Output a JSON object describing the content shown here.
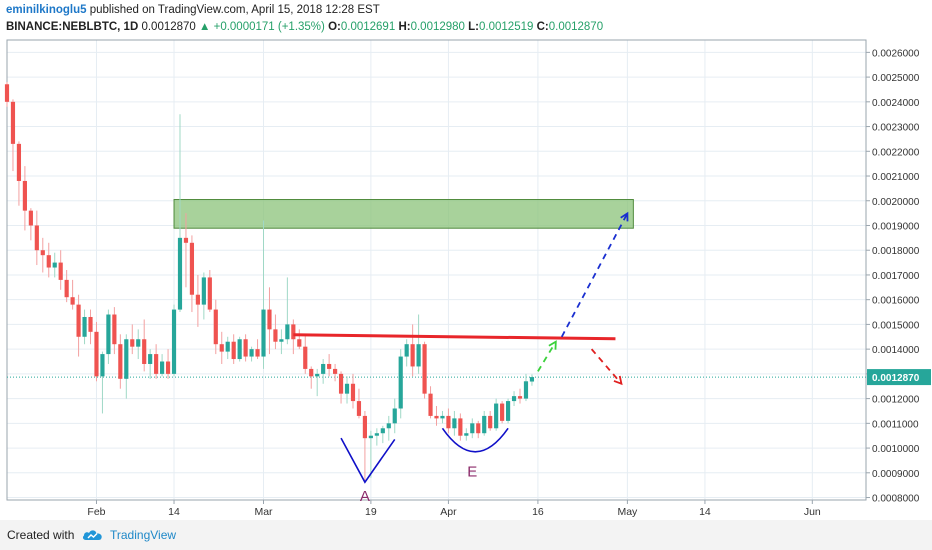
{
  "header": {
    "username": "eminilkinoglu5",
    "published": "published on TradingView.com, April 15, 2018 12:28 EST",
    "symbol": "BINANCE:NEBLBTC, 1D",
    "price": "0.0012870",
    "change": "▲ +0.0000171 (+1.35%)",
    "o_label": "O:",
    "o_value": "0.0012691",
    "h_label": "H:",
    "h_value": "0.0012980",
    "l_label": "L:",
    "l_value": "0.0012519",
    "c_label": "C:",
    "c_value": "0.0012870"
  },
  "footer": {
    "created_with": "Created with",
    "brand": "TradingView"
  },
  "colors": {
    "up": "#26a69a",
    "down": "#ef5350",
    "zone": "#8bc379",
    "resistance": "#e8262a",
    "last_price": "#26a69a",
    "pattern": "#1010c8",
    "pattern_label": "#8b2a6a"
  },
  "chart_data": {
    "type": "candlestick",
    "y_axis": {
      "position": "right",
      "ticks": [
        "0.0026000",
        "0.0025000",
        "0.0024000",
        "0.0023000",
        "0.0022000",
        "0.0021000",
        "0.0020000",
        "0.0019000",
        "0.0018000",
        "0.0017000",
        "0.0016000",
        "0.0015000",
        "0.0014000",
        "0.0013000",
        "0.0012000",
        "0.0011000",
        "0.0010000",
        "0.0009000",
        "0.0008000"
      ],
      "range": [
        0.00079,
        0.00265
      ]
    },
    "x_axis": {
      "ticks": [
        {
          "label": "Feb",
          "date": "2018-02-01"
        },
        {
          "label": "14",
          "date": "2018-02-14"
        },
        {
          "label": "Mar",
          "date": "2018-03-01"
        },
        {
          "label": "19",
          "date": "2018-03-19"
        },
        {
          "label": "Apr",
          "date": "2018-04-01"
        },
        {
          "label": "16",
          "date": "2018-04-16"
        },
        {
          "label": "May",
          "date": "2018-05-01"
        },
        {
          "label": "14",
          "date": "2018-05-14"
        },
        {
          "label": "Jun",
          "date": "2018-06-01"
        }
      ],
      "range": [
        "2018-01-17",
        "2018-06-10"
      ]
    },
    "last_price": "0.0012870",
    "last_price_value": 0.001287,
    "grid": true,
    "candles": [
      {
        "date": "2018-01-17",
        "o": 0.002471,
        "h": 0.00248,
        "l": 0.00238,
        "c": 0.0024
      },
      {
        "date": "2018-01-18",
        "o": 0.0024,
        "h": 0.00241,
        "l": 0.00212,
        "c": 0.00223
      },
      {
        "date": "2018-01-19",
        "o": 0.00223,
        "h": 0.00224,
        "l": 0.00198,
        "c": 0.00208
      },
      {
        "date": "2018-01-20",
        "o": 0.00208,
        "h": 0.00214,
        "l": 0.00188,
        "c": 0.00196
      },
      {
        "date": "2018-01-21",
        "o": 0.00196,
        "h": 0.00197,
        "l": 0.00184,
        "c": 0.0019
      },
      {
        "date": "2018-01-22",
        "o": 0.0019,
        "h": 0.00196,
        "l": 0.00174,
        "c": 0.0018
      },
      {
        "date": "2018-01-23",
        "o": 0.0018,
        "h": 0.00185,
        "l": 0.00171,
        "c": 0.00178
      },
      {
        "date": "2018-01-24",
        "o": 0.00178,
        "h": 0.00183,
        "l": 0.00169,
        "c": 0.00173
      },
      {
        "date": "2018-01-25",
        "o": 0.00173,
        "h": 0.00179,
        "l": 0.00169,
        "c": 0.00175
      },
      {
        "date": "2018-01-26",
        "o": 0.00175,
        "h": 0.0018,
        "l": 0.00164,
        "c": 0.00168
      },
      {
        "date": "2018-01-27",
        "o": 0.00168,
        "h": 0.00172,
        "l": 0.00159,
        "c": 0.00161
      },
      {
        "date": "2018-01-28",
        "o": 0.00161,
        "h": 0.00168,
        "l": 0.00156,
        "c": 0.00158
      },
      {
        "date": "2018-01-29",
        "o": 0.00158,
        "h": 0.00162,
        "l": 0.00137,
        "c": 0.00145
      },
      {
        "date": "2018-01-30",
        "o": 0.00145,
        "h": 0.00156,
        "l": 0.00142,
        "c": 0.00153
      },
      {
        "date": "2018-01-31",
        "o": 0.00153,
        "h": 0.00156,
        "l": 0.00142,
        "c": 0.00147
      },
      {
        "date": "2018-02-01",
        "o": 0.00147,
        "h": 0.00151,
        "l": 0.00127,
        "c": 0.00129
      },
      {
        "date": "2018-02-02",
        "o": 0.00129,
        "h": 0.00139,
        "l": 0.00114,
        "c": 0.00138
      },
      {
        "date": "2018-02-03",
        "o": 0.00138,
        "h": 0.00156,
        "l": 0.00134,
        "c": 0.00154
      },
      {
        "date": "2018-02-04",
        "o": 0.00154,
        "h": 0.00157,
        "l": 0.00138,
        "c": 0.00142
      },
      {
        "date": "2018-02-05",
        "o": 0.00142,
        "h": 0.00146,
        "l": 0.00124,
        "c": 0.00128
      },
      {
        "date": "2018-02-06",
        "o": 0.00128,
        "h": 0.00146,
        "l": 0.0012,
        "c": 0.00144
      },
      {
        "date": "2018-02-07",
        "o": 0.00144,
        "h": 0.0015,
        "l": 0.00138,
        "c": 0.00141
      },
      {
        "date": "2018-02-08",
        "o": 0.00141,
        "h": 0.00148,
        "l": 0.00136,
        "c": 0.00144
      },
      {
        "date": "2018-02-09",
        "o": 0.00144,
        "h": 0.00152,
        "l": 0.00131,
        "c": 0.00134
      },
      {
        "date": "2018-02-10",
        "o": 0.00134,
        "h": 0.0014,
        "l": 0.00128,
        "c": 0.00138
      },
      {
        "date": "2018-02-11",
        "o": 0.00138,
        "h": 0.00142,
        "l": 0.00128,
        "c": 0.0013
      },
      {
        "date": "2018-02-12",
        "o": 0.0013,
        "h": 0.00138,
        "l": 0.00129,
        "c": 0.00135
      },
      {
        "date": "2018-02-13",
        "o": 0.00135,
        "h": 0.0014,
        "l": 0.00128,
        "c": 0.0013
      },
      {
        "date": "2018-02-14",
        "o": 0.0013,
        "h": 0.00158,
        "l": 0.00129,
        "c": 0.00156
      },
      {
        "date": "2018-02-15",
        "o": 0.00156,
        "h": 0.00235,
        "l": 0.00155,
        "c": 0.00185
      },
      {
        "date": "2018-02-16",
        "o": 0.00185,
        "h": 0.00195,
        "l": 0.00165,
        "c": 0.00183
      },
      {
        "date": "2018-02-17",
        "o": 0.00183,
        "h": 0.00186,
        "l": 0.00155,
        "c": 0.00162
      },
      {
        "date": "2018-02-18",
        "o": 0.00162,
        "h": 0.0017,
        "l": 0.00149,
        "c": 0.00158
      },
      {
        "date": "2018-02-19",
        "o": 0.00158,
        "h": 0.00171,
        "l": 0.00152,
        "c": 0.00169
      },
      {
        "date": "2018-02-20",
        "o": 0.00169,
        "h": 0.00172,
        "l": 0.00155,
        "c": 0.00156
      },
      {
        "date": "2018-02-21",
        "o": 0.00156,
        "h": 0.0016,
        "l": 0.00138,
        "c": 0.00142
      },
      {
        "date": "2018-02-22",
        "o": 0.00142,
        "h": 0.00147,
        "l": 0.00134,
        "c": 0.00139
      },
      {
        "date": "2018-02-23",
        "o": 0.00139,
        "h": 0.00145,
        "l": 0.00136,
        "c": 0.00143
      },
      {
        "date": "2018-02-24",
        "o": 0.00143,
        "h": 0.00146,
        "l": 0.00134,
        "c": 0.00136
      },
      {
        "date": "2018-02-25",
        "o": 0.00136,
        "h": 0.00145,
        "l": 0.00135,
        "c": 0.00144
      },
      {
        "date": "2018-02-26",
        "o": 0.00144,
        "h": 0.00146,
        "l": 0.00135,
        "c": 0.00137
      },
      {
        "date": "2018-02-27",
        "o": 0.00137,
        "h": 0.00141,
        "l": 0.00135,
        "c": 0.0014
      },
      {
        "date": "2018-02-28",
        "o": 0.0014,
        "h": 0.00144,
        "l": 0.00136,
        "c": 0.00137
      },
      {
        "date": "2018-03-01",
        "o": 0.00137,
        "h": 0.00192,
        "l": 0.00132,
        "c": 0.00156
      },
      {
        "date": "2018-03-02",
        "o": 0.00156,
        "h": 0.00165,
        "l": 0.00138,
        "c": 0.00148
      },
      {
        "date": "2018-03-03",
        "o": 0.00148,
        "h": 0.00154,
        "l": 0.0014,
        "c": 0.00143
      },
      {
        "date": "2018-03-04",
        "o": 0.00143,
        "h": 0.00148,
        "l": 0.00138,
        "c": 0.00144
      },
      {
        "date": "2018-03-05",
        "o": 0.00144,
        "h": 0.00169,
        "l": 0.00142,
        "c": 0.0015
      },
      {
        "date": "2018-03-06",
        "o": 0.0015,
        "h": 0.00152,
        "l": 0.00138,
        "c": 0.00144
      },
      {
        "date": "2018-03-07",
        "o": 0.00144,
        "h": 0.00148,
        "l": 0.0014,
        "c": 0.00141
      },
      {
        "date": "2018-03-08",
        "o": 0.00141,
        "h": 0.00146,
        "l": 0.0013,
        "c": 0.00132
      },
      {
        "date": "2018-03-09",
        "o": 0.00132,
        "h": 0.00133,
        "l": 0.00124,
        "c": 0.00129
      },
      {
        "date": "2018-03-10",
        "o": 0.00129,
        "h": 0.00132,
        "l": 0.00121,
        "c": 0.0013
      },
      {
        "date": "2018-03-11",
        "o": 0.0013,
        "h": 0.00136,
        "l": 0.00126,
        "c": 0.00134
      },
      {
        "date": "2018-03-12",
        "o": 0.00134,
        "h": 0.00138,
        "l": 0.00129,
        "c": 0.00132
      },
      {
        "date": "2018-03-13",
        "o": 0.00132,
        "h": 0.00134,
        "l": 0.00127,
        "c": 0.0013
      },
      {
        "date": "2018-03-14",
        "o": 0.0013,
        "h": 0.00131,
        "l": 0.00118,
        "c": 0.00122
      },
      {
        "date": "2018-03-15",
        "o": 0.00122,
        "h": 0.00129,
        "l": 0.00118,
        "c": 0.00126
      },
      {
        "date": "2018-03-16",
        "o": 0.00126,
        "h": 0.0013,
        "l": 0.00116,
        "c": 0.00119
      },
      {
        "date": "2018-03-17",
        "o": 0.00119,
        "h": 0.00124,
        "l": 0.00112,
        "c": 0.00113
      },
      {
        "date": "2018-03-18",
        "o": 0.00113,
        "h": 0.00115,
        "l": 0.00087,
        "c": 0.00104
      },
      {
        "date": "2018-03-19",
        "o": 0.00104,
        "h": 0.00107,
        "l": 0.00088,
        "c": 0.00105
      },
      {
        "date": "2018-03-20",
        "o": 0.00105,
        "h": 0.00108,
        "l": 0.00101,
        "c": 0.00106
      },
      {
        "date": "2018-03-21",
        "o": 0.00106,
        "h": 0.00109,
        "l": 0.00102,
        "c": 0.00108
      },
      {
        "date": "2018-03-22",
        "o": 0.00108,
        "h": 0.00113,
        "l": 0.00103,
        "c": 0.0011
      },
      {
        "date": "2018-03-23",
        "o": 0.0011,
        "h": 0.0012,
        "l": 0.00106,
        "c": 0.00116
      },
      {
        "date": "2018-03-24",
        "o": 0.00116,
        "h": 0.0014,
        "l": 0.00112,
        "c": 0.00137
      },
      {
        "date": "2018-03-25",
        "o": 0.00137,
        "h": 0.00144,
        "l": 0.00133,
        "c": 0.00142
      },
      {
        "date": "2018-03-26",
        "o": 0.00142,
        "h": 0.0015,
        "l": 0.00129,
        "c": 0.00133
      },
      {
        "date": "2018-03-27",
        "o": 0.00133,
        "h": 0.00154,
        "l": 0.0013,
        "c": 0.00142
      },
      {
        "date": "2018-03-28",
        "o": 0.00142,
        "h": 0.00143,
        "l": 0.0012,
        "c": 0.00122
      },
      {
        "date": "2018-03-29",
        "o": 0.00122,
        "h": 0.00125,
        "l": 0.00112,
        "c": 0.00113
      },
      {
        "date": "2018-03-30",
        "o": 0.00113,
        "h": 0.00117,
        "l": 0.00109,
        "c": 0.00112
      },
      {
        "date": "2018-03-31",
        "o": 0.00112,
        "h": 0.00115,
        "l": 0.0011,
        "c": 0.00113
      },
      {
        "date": "2018-04-01",
        "o": 0.00113,
        "h": 0.00116,
        "l": 0.00106,
        "c": 0.00108
      },
      {
        "date": "2018-04-02",
        "o": 0.00108,
        "h": 0.00115,
        "l": 0.00105,
        "c": 0.00112
      },
      {
        "date": "2018-04-03",
        "o": 0.00112,
        "h": 0.00114,
        "l": 0.00103,
        "c": 0.00105
      },
      {
        "date": "2018-04-04",
        "o": 0.00105,
        "h": 0.00108,
        "l": 0.00103,
        "c": 0.00106
      },
      {
        "date": "2018-04-05",
        "o": 0.00106,
        "h": 0.00112,
        "l": 0.00104,
        "c": 0.0011
      },
      {
        "date": "2018-04-06",
        "o": 0.0011,
        "h": 0.00111,
        "l": 0.00104,
        "c": 0.00106
      },
      {
        "date": "2018-04-07",
        "o": 0.00106,
        "h": 0.00115,
        "l": 0.00105,
        "c": 0.00113
      },
      {
        "date": "2018-04-08",
        "o": 0.00113,
        "h": 0.00115,
        "l": 0.00107,
        "c": 0.00108
      },
      {
        "date": "2018-04-09",
        "o": 0.00108,
        "h": 0.0012,
        "l": 0.00107,
        "c": 0.00118
      },
      {
        "date": "2018-04-10",
        "o": 0.00118,
        "h": 0.00119,
        "l": 0.0011,
        "c": 0.00111
      },
      {
        "date": "2018-04-11",
        "o": 0.00111,
        "h": 0.0012,
        "l": 0.0011,
        "c": 0.00119
      },
      {
        "date": "2018-04-12",
        "o": 0.00119,
        "h": 0.00123,
        "l": 0.00117,
        "c": 0.00121
      },
      {
        "date": "2018-04-13",
        "o": 0.00121,
        "h": 0.00124,
        "l": 0.00118,
        "c": 0.0012
      },
      {
        "date": "2018-04-14",
        "o": 0.0012,
        "h": 0.0013,
        "l": 0.00119,
        "c": 0.00127
      },
      {
        "date": "2018-04-15",
        "o": 0.001269,
        "h": 0.001298,
        "l": 0.001252,
        "c": 0.001287
      }
    ],
    "annotations": {
      "zone": {
        "from": "2018-02-14",
        "to": "2018-05-02",
        "low": 0.001889,
        "high": 0.002005
      },
      "resistance": {
        "from": "2018-03-06",
        "to": "2018-04-29",
        "start": 0.001458,
        "end": 0.001442
      },
      "v_shape": {
        "points": [
          [
            "2018-03-14",
            0.00104
          ],
          [
            "2018-03-18",
            0.000862
          ],
          [
            "2018-03-23",
            0.001035
          ]
        ]
      },
      "u_shape": {
        "from": "2018-03-31",
        "to": "2018-04-11",
        "top": 0.00108,
        "bottom": 0.000985
      },
      "label_a": {
        "text": "A",
        "date": "2018-03-18",
        "value": 0.00081
      },
      "label_e": {
        "text": "E",
        "date": "2018-04-05",
        "value": 0.00091
      },
      "projection_green": {
        "from": [
          "2018-04-16",
          0.00131
        ],
        "to": [
          "2018-04-19",
          0.00143
        ]
      },
      "projection_blue": {
        "from": [
          "2018-04-20",
          0.00145
        ],
        "to": [
          "2018-05-01",
          0.001949
        ]
      },
      "projection_red": {
        "from": [
          "2018-04-25",
          0.0014
        ],
        "to": [
          "2018-04-30",
          0.00126
        ]
      }
    }
  }
}
